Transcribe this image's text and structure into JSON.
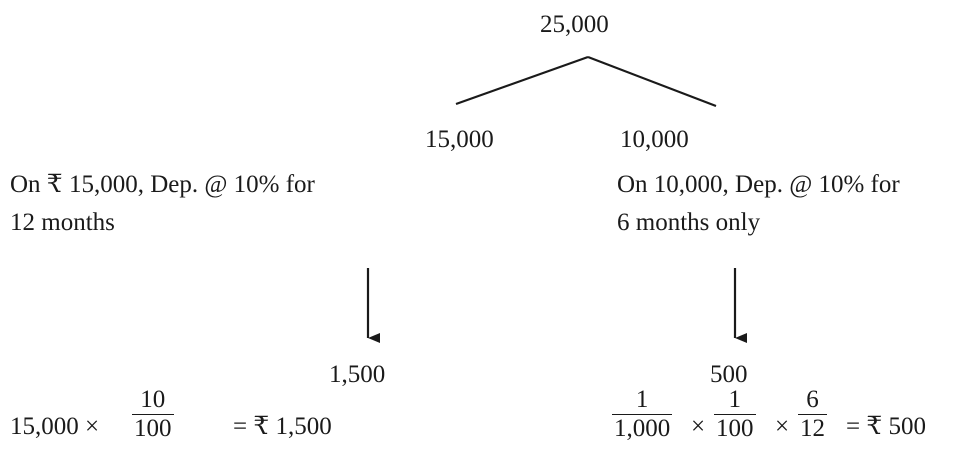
{
  "tree": {
    "root": "25,000",
    "left_branch": "15,000",
    "right_branch": "10,000"
  },
  "left": {
    "description_line1": "On ₹ 15,000, Dep. @ 10% for",
    "description_line2": "12 months",
    "result": "1,500",
    "calc_prefix": "15,000 ×",
    "frac_num": "10",
    "frac_den": "100",
    "calc_result": "= ₹ 1,500"
  },
  "right": {
    "description_line1": "On 10,000, Dep. @ 10% for",
    "description_line2": "6 months only",
    "result": "500",
    "frac1_num": "1",
    "frac1_den": "1,000",
    "times1": "×",
    "frac2_num": "1",
    "frac2_den": "100",
    "times2": "×",
    "frac3_num": "6",
    "frac3_den": "12",
    "calc_result": "= ₹ 500"
  }
}
